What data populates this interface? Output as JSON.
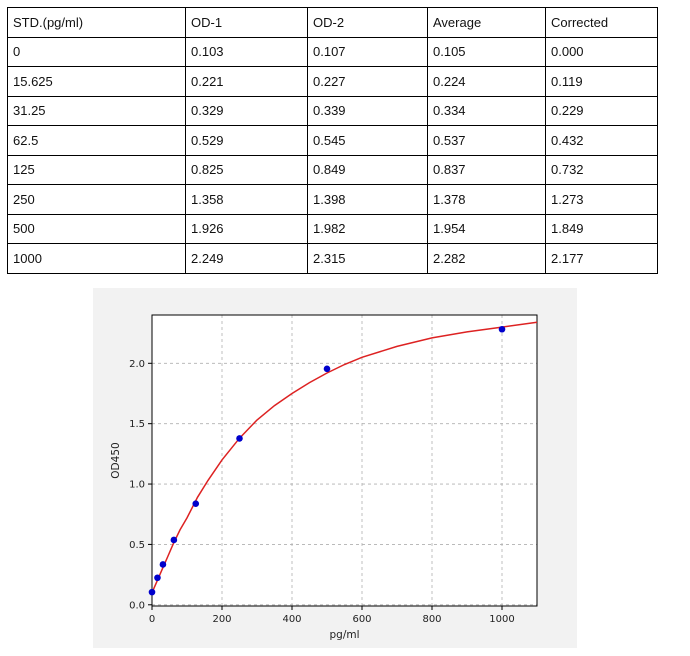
{
  "table": {
    "headers": [
      "STD.(pg/ml)",
      "OD-1",
      "OD-2",
      "Average",
      "Corrected"
    ],
    "rows": [
      [
        "0",
        "0.103",
        "0.107",
        "0.105",
        "0.000"
      ],
      [
        "15.625",
        "0.221",
        "0.227",
        "0.224",
        "0.119"
      ],
      [
        "31.25",
        "0.329",
        "0.339",
        "0.334",
        "0.229"
      ],
      [
        "62.5",
        "0.529",
        "0.545",
        "0.537",
        "0.432"
      ],
      [
        "125",
        "0.825",
        "0.849",
        "0.837",
        "0.732"
      ],
      [
        "250",
        "1.358",
        "1.398",
        "1.378",
        "1.273"
      ],
      [
        "500",
        "1.926",
        "1.982",
        "1.954",
        "1.849"
      ],
      [
        "1000",
        "2.249",
        "2.315",
        "2.282",
        "2.177"
      ]
    ]
  },
  "chart_data": {
    "type": "scatter",
    "xlabel": "pg/ml",
    "ylabel": "OD450",
    "xlim": [
      0,
      1100
    ],
    "ylim": [
      -0.01,
      2.4
    ],
    "xticks": [
      "0",
      "200",
      "400",
      "600",
      "800",
      "1000"
    ],
    "yticks": [
      "0.0",
      "0.5",
      "1.0",
      "1.5",
      "2.0"
    ],
    "grid": true,
    "points": {
      "x": [
        0,
        15.625,
        31.25,
        62.5,
        125,
        250,
        500,
        1000
      ],
      "y": [
        0.105,
        0.224,
        0.334,
        0.537,
        0.837,
        1.378,
        1.954,
        2.282
      ]
    },
    "fit_curve": {
      "x": [
        0,
        15,
        30,
        45,
        60,
        80,
        100,
        130,
        160,
        200,
        250,
        300,
        350,
        400,
        450,
        500,
        550,
        600,
        700,
        800,
        900,
        1000,
        1100
      ],
      "y": [
        0.1,
        0.2,
        0.3,
        0.4,
        0.5,
        0.62,
        0.72,
        0.89,
        1.03,
        1.2,
        1.38,
        1.53,
        1.65,
        1.75,
        1.84,
        1.92,
        1.99,
        2.05,
        2.14,
        2.21,
        2.26,
        2.3,
        2.34
      ]
    },
    "colors": {
      "points": "#0000cc",
      "curve": "#dd2222",
      "grid": "#b0b0b0",
      "background": "#f2f2f2"
    }
  }
}
